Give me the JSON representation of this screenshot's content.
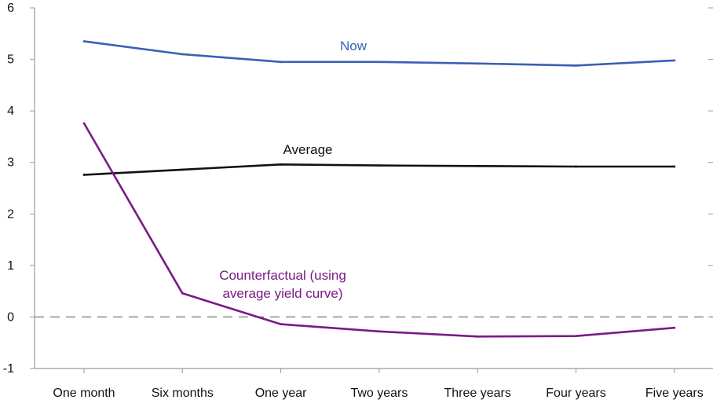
{
  "chart_data": {
    "type": "line",
    "categories": [
      "One month",
      "Six months",
      "One year",
      "Two years",
      "Three years",
      "Four years",
      "Five years"
    ],
    "ylim": [
      -1,
      6
    ],
    "yticks": [
      -1,
      0,
      1,
      2,
      3,
      4,
      5,
      6
    ],
    "grid": false,
    "zero_line": "dashed",
    "series": [
      {
        "name": "Now",
        "color": "#3a5fb5",
        "values": [
          5.35,
          5.1,
          4.95,
          4.95,
          4.92,
          4.88,
          4.98
        ]
      },
      {
        "name": "Average",
        "color": "#111111",
        "values": [
          2.76,
          2.86,
          2.96,
          2.94,
          2.93,
          2.92,
          2.92
        ]
      },
      {
        "name": "Counterfactual (using average yield curve)",
        "label_lines": [
          "Counterfactual (using",
          "average yield curve)"
        ],
        "color": "#7a1a86",
        "values": [
          3.76,
          0.46,
          -0.14,
          -0.28,
          -0.38,
          -0.37,
          -0.21
        ]
      }
    ]
  }
}
